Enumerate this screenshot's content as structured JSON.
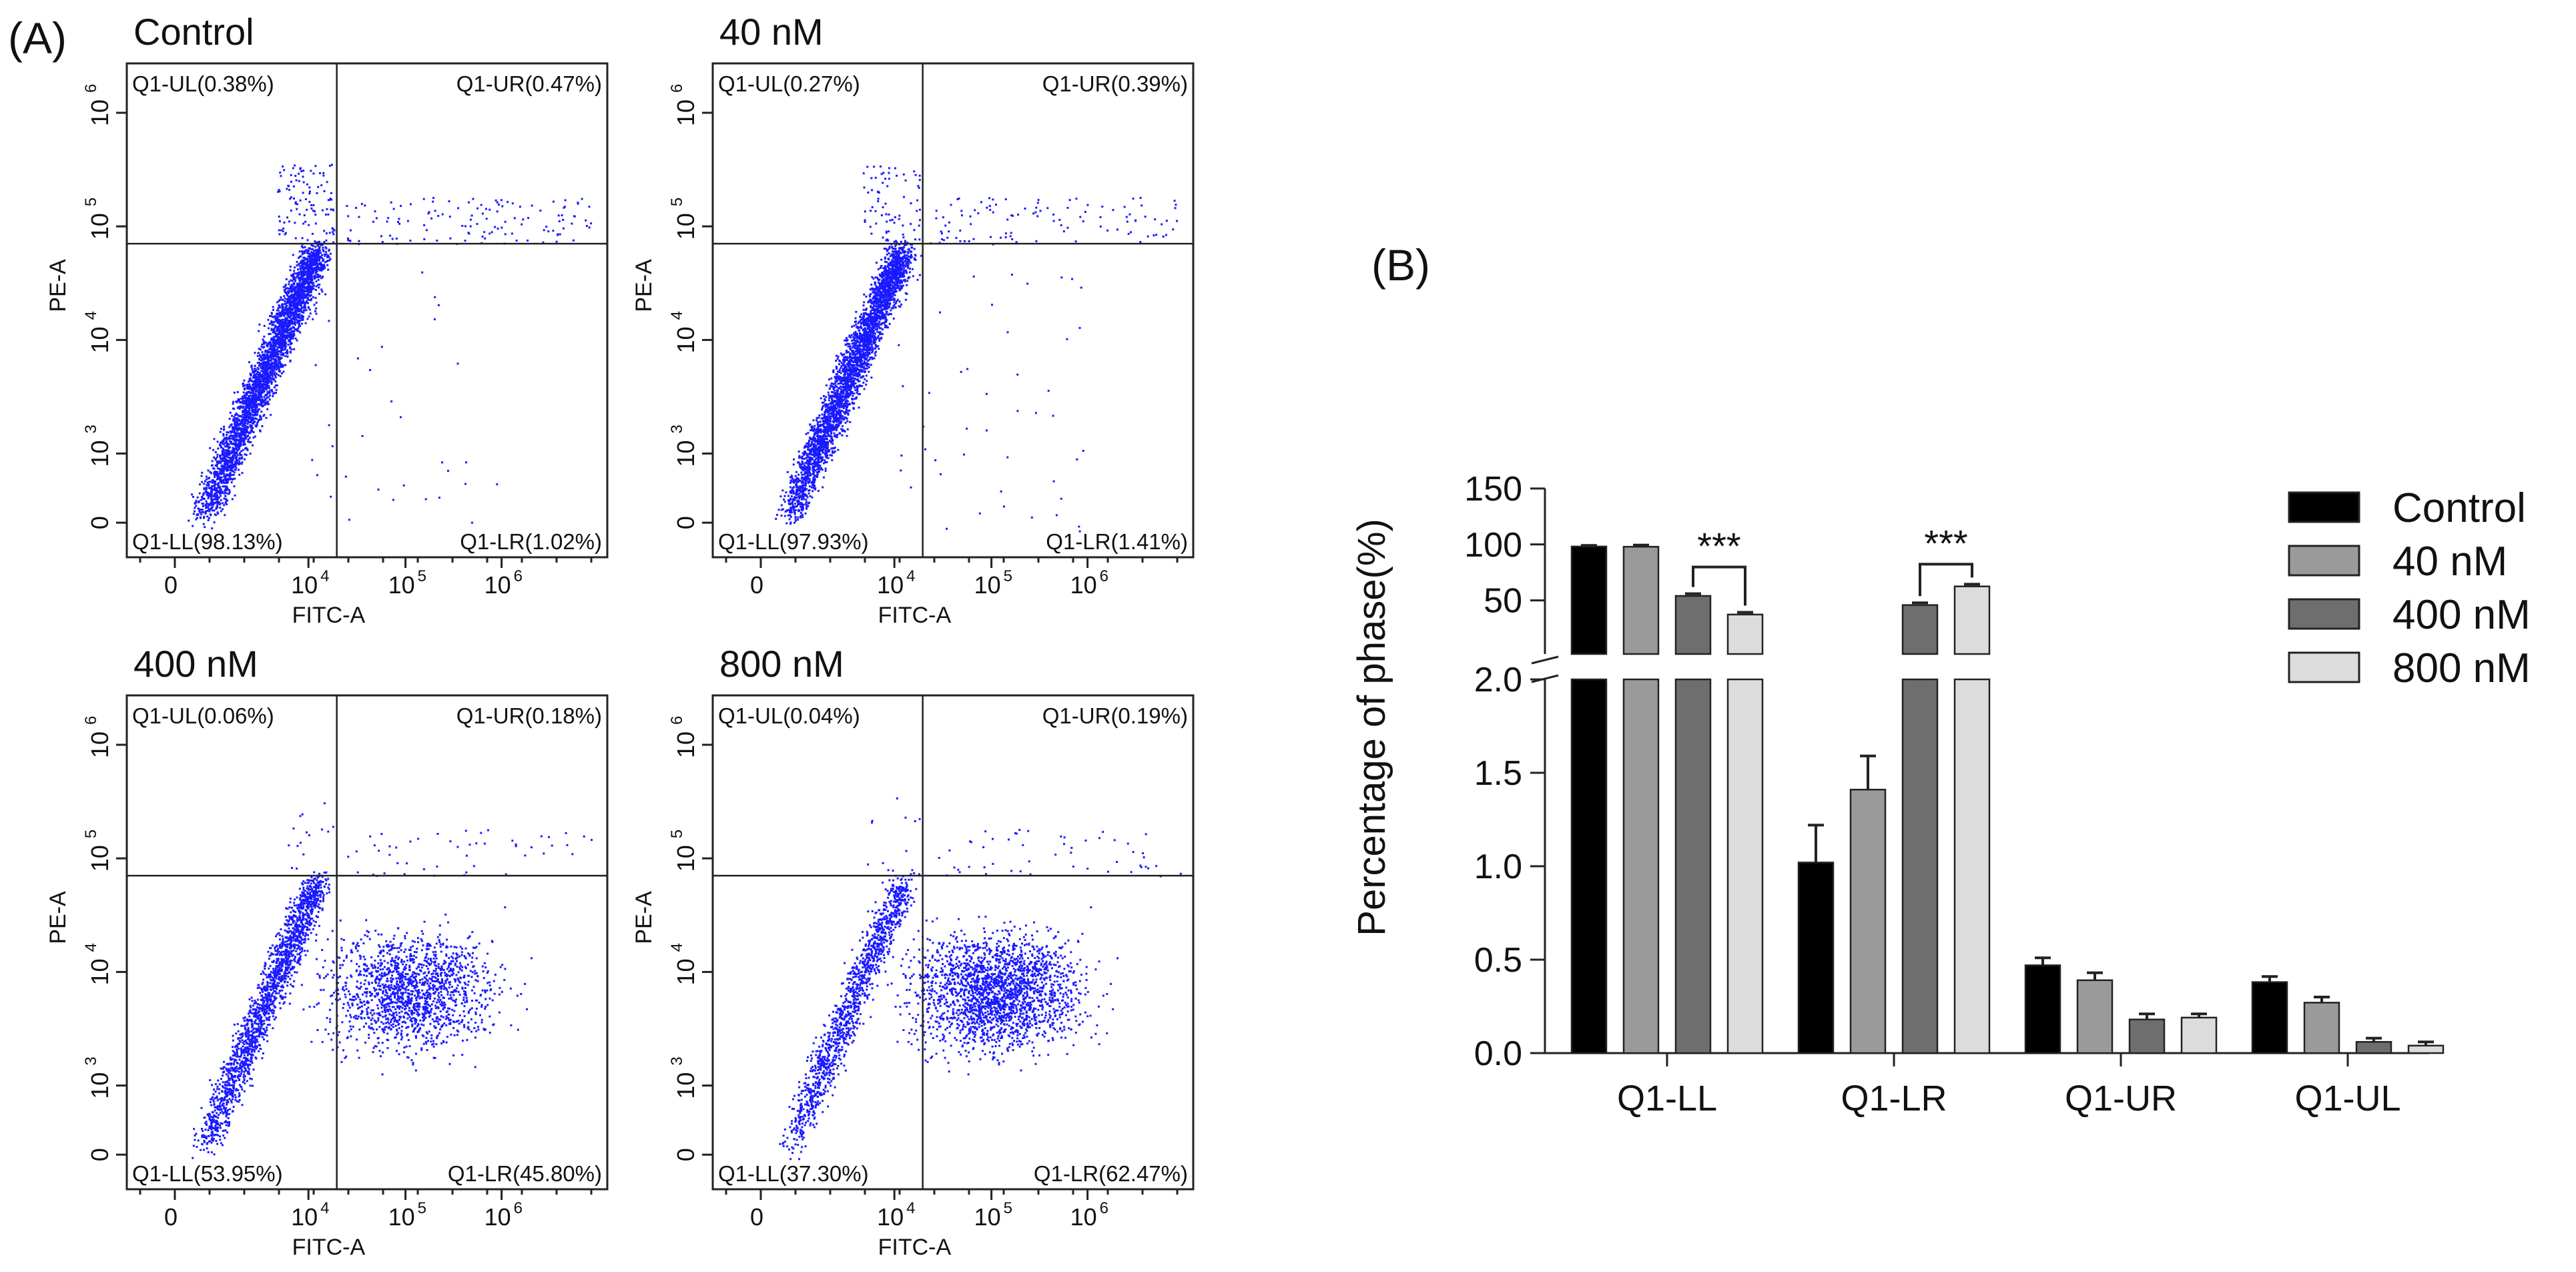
{
  "panel_a": {
    "label": "(A)",
    "x_axis_label": "FITC-A",
    "y_axis_label": "PE-A",
    "x_ticks": [
      "0",
      "10",
      "10",
      "10"
    ],
    "x_tick_exponents": [
      "",
      "4",
      "5",
      "6"
    ],
    "y_ticks": [
      "0",
      "10",
      "10",
      "10",
      "10"
    ],
    "y_tick_exponents": [
      "",
      "3",
      "4",
      "5",
      "6"
    ],
    "plots": [
      {
        "title": "Control",
        "ul": "Q1-UL(0.38%)",
        "ur": "Q1-UR(0.47%)",
        "ll": "Q1-LL(98.13%)",
        "lr": "Q1-LR(1.02%)",
        "point_color": "#1a1aff",
        "ll_fraction": 0.9813,
        "lr_fraction": 0.0102,
        "ur_fraction": 0.0047,
        "ul_fraction": 0.0038
      },
      {
        "title": "40 nM",
        "ul": "Q1-UL(0.27%)",
        "ur": "Q1-UR(0.39%)",
        "ll": "Q1-LL(97.93%)",
        "lr": "Q1-LR(1.41%)",
        "point_color": "#1a1aff",
        "ll_fraction": 0.9793,
        "lr_fraction": 0.0141,
        "ur_fraction": 0.0039,
        "ul_fraction": 0.0027
      },
      {
        "title": "400 nM",
        "ul": "Q1-UL(0.06%)",
        "ur": "Q1-UR(0.18%)",
        "ll": "Q1-LL(53.95%)",
        "lr": "Q1-LR(45.80%)",
        "point_color": "#1a1aff",
        "ll_fraction": 0.5395,
        "lr_fraction": 0.458,
        "ur_fraction": 0.0018,
        "ul_fraction": 0.0006
      },
      {
        "title": "800 nM",
        "ul": "Q1-UL(0.04%)",
        "ur": "Q1-UR(0.19%)",
        "ll": "Q1-LL(37.30%)",
        "lr": "Q1-LR(62.47%)",
        "point_color": "#1a1aff",
        "ll_fraction": 0.373,
        "lr_fraction": 0.6247,
        "ur_fraction": 0.0019,
        "ul_fraction": 0.0004
      }
    ]
  },
  "chart_data": {
    "type": "bar",
    "panel_label": "(B)",
    "title": "",
    "xlabel": "",
    "ylabel": "Percentage of phase(%)",
    "categories": [
      "Q1-LL",
      "Q1-LR",
      "Q1-UR",
      "Q1-UL"
    ],
    "series": [
      {
        "name": "Control",
        "color": "#000000",
        "values": [
          98.13,
          1.02,
          0.47,
          0.38
        ],
        "errors": [
          1.0,
          0.2,
          0.04,
          0.03
        ]
      },
      {
        "name": "40 nM",
        "color": "#9a9a9a",
        "values": [
          97.93,
          1.41,
          0.39,
          0.27
        ],
        "errors": [
          1.5,
          0.18,
          0.04,
          0.03
        ]
      },
      {
        "name": "400 nM",
        "color": "#6e6e6e",
        "values": [
          53.95,
          45.8,
          0.18,
          0.06
        ],
        "errors": [
          2.0,
          2.0,
          0.03,
          0.02
        ]
      },
      {
        "name": "800 nM",
        "color": "#dcdcdc",
        "values": [
          37.3,
          62.47,
          0.19,
          0.04
        ],
        "errors": [
          2.0,
          2.0,
          0.02,
          0.02
        ]
      }
    ],
    "y_axis_break": {
      "lower_range": [
        0,
        2.0
      ],
      "upper_range": [
        2.0,
        150
      ],
      "lower_ticks": [
        "0.0",
        "0.5",
        "1.0",
        "1.5",
        "2.0"
      ],
      "upper_ticks": [
        "50",
        "100",
        "150"
      ]
    },
    "significance": [
      {
        "category": "Q1-LL",
        "from_series": "400 nM",
        "to_series": "800 nM",
        "label": "***"
      },
      {
        "category": "Q1-LR",
        "from_series": "400 nM",
        "to_series": "800 nM",
        "label": "***"
      }
    ],
    "legend_position": "right"
  }
}
